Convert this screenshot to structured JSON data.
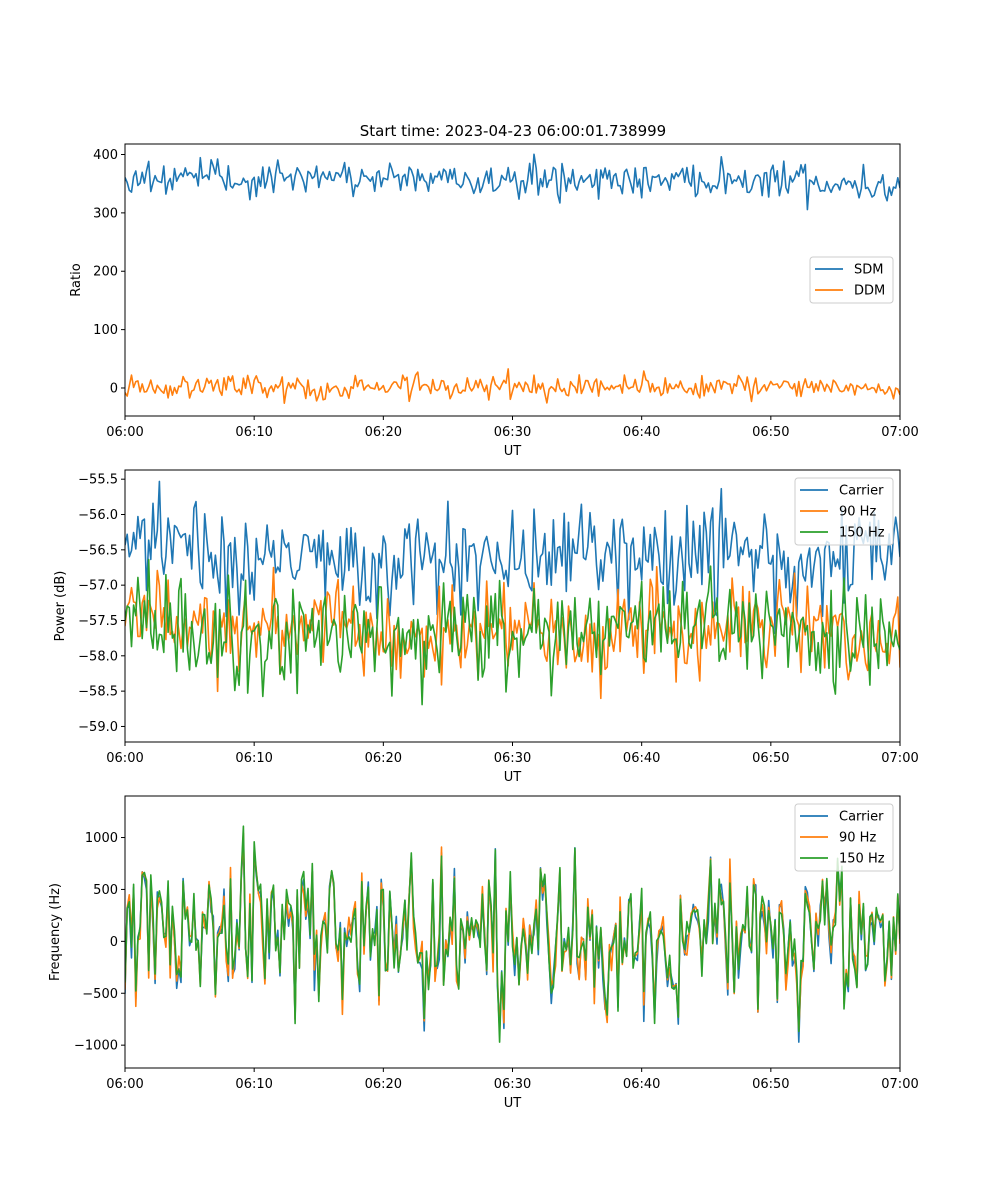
{
  "title": "Start time: 2023-04-23 06:00:01.738999",
  "chart_data": [
    {
      "type": "line",
      "title": "Start time: 2023-04-23 06:00:01.738999",
      "xlabel": "UT",
      "ylabel": "Ratio",
      "x_ticks": [
        "06:00",
        "06:10",
        "06:20",
        "06:30",
        "06:40",
        "06:50",
        "07:00"
      ],
      "y_ticks": [
        "0",
        "100",
        "200",
        "300",
        "400"
      ],
      "xlim": [
        "06:00",
        "07:00"
      ],
      "ylim": [
        -48,
        418
      ],
      "legend": "center-right",
      "grid": false,
      "x": [
        "06:00",
        "06:05",
        "06:10",
        "06:15",
        "06:20",
        "06:25",
        "06:30",
        "06:35",
        "06:40",
        "06:45",
        "06:50",
        "06:55",
        "07:00"
      ],
      "series": [
        {
          "name": "SDM",
          "color": "#1f77b4",
          "values": [
            360,
            362,
            355,
            358,
            362,
            357,
            354,
            360,
            357,
            358,
            360,
            350,
            345
          ],
          "noise": 15
        },
        {
          "name": "DDM",
          "color": "#ff7f0e",
          "values": [
            2,
            0,
            2,
            0,
            0,
            2,
            3,
            1,
            2,
            2,
            3,
            0,
            0
          ],
          "noise": 10
        }
      ]
    },
    {
      "type": "line",
      "xlabel": "UT",
      "ylabel": "Power (dB)",
      "x_ticks": [
        "06:00",
        "06:10",
        "06:20",
        "06:30",
        "06:40",
        "06:50",
        "07:00"
      ],
      "y_ticks": [
        "−55.5",
        "−56.0",
        "−56.5",
        "−57.0",
        "−57.5",
        "−58.0",
        "−58.5",
        "−59.0"
      ],
      "xlim": [
        "06:00",
        "07:00"
      ],
      "ylim": [
        -59.22,
        -55.37
      ],
      "legend": "top-right",
      "grid": false,
      "x": [
        "06:00",
        "06:05",
        "06:10",
        "06:15",
        "06:20",
        "06:25",
        "06:30",
        "06:35",
        "06:40",
        "06:45",
        "06:50",
        "06:55",
        "07:00"
      ],
      "series": [
        {
          "name": "Carrier",
          "color": "#1f77b4",
          "values": [
            -56.2,
            -56.5,
            -56.7,
            -56.5,
            -56.8,
            -56.6,
            -56.7,
            -56.5,
            -56.6,
            -56.5,
            -56.8,
            -56.7,
            -56.5
          ],
          "noise": 0.35
        },
        {
          "name": "90 Hz",
          "color": "#ff7f0e",
          "values": [
            -57.3,
            -57.6,
            -57.7,
            -57.5,
            -57.8,
            -57.7,
            -57.6,
            -57.7,
            -57.6,
            -57.6,
            -57.6,
            -57.7,
            -57.7
          ],
          "noise": 0.3
        },
        {
          "name": "150 Hz",
          "color": "#2ca02c",
          "values": [
            -57.5,
            -57.8,
            -57.9,
            -57.6,
            -57.8,
            -57.6,
            -57.7,
            -57.6,
            -57.5,
            -57.6,
            -57.7,
            -57.8,
            -57.6
          ],
          "noise": 0.35
        }
      ]
    },
    {
      "type": "line",
      "xlabel": "UT",
      "ylabel": "Frequency (Hz)",
      "x_ticks": [
        "06:00",
        "06:10",
        "06:20",
        "06:30",
        "06:40",
        "06:50",
        "07:00"
      ],
      "y_ticks": [
        "1000",
        "500",
        "0",
        "−500",
        "−1000"
      ],
      "xlim": [
        "06:00",
        "07:00"
      ],
      "ylim": [
        -1220,
        1400
      ],
      "legend": "top-right",
      "grid": false,
      "x": [
        "06:00",
        "06:05",
        "06:10",
        "06:15",
        "06:20",
        "06:25",
        "06:30",
        "06:35",
        "06:40",
        "06:45",
        "06:50",
        "06:55",
        "07:00"
      ],
      "series": [
        {
          "name": "Carrier",
          "color": "#1f77b4",
          "values": [
            80,
            50,
            30,
            60,
            20,
            0,
            40,
            20,
            0,
            30,
            50,
            20,
            100
          ],
          "noise": 380
        },
        {
          "name": "90 Hz",
          "color": "#ff7f0e",
          "values": [
            90,
            60,
            40,
            70,
            30,
            10,
            50,
            30,
            10,
            40,
            60,
            30,
            110
          ],
          "noise": 380
        },
        {
          "name": "150 Hz",
          "color": "#2ca02c",
          "values": [
            100,
            70,
            50,
            80,
            40,
            20,
            60,
            40,
            20,
            50,
            70,
            40,
            120
          ],
          "noise": 380
        }
      ]
    }
  ]
}
